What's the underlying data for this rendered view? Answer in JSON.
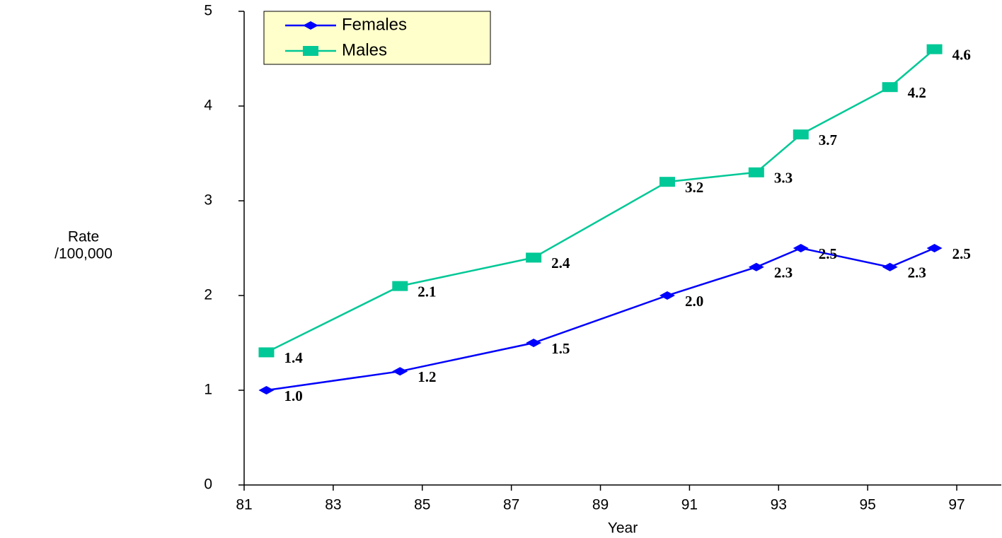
{
  "chart_data": {
    "type": "line",
    "x_label": "Year",
    "y_label": [
      "Rate",
      "/100,000"
    ],
    "x": [
      81.5,
      84.5,
      87.5,
      90.5,
      92.5,
      93.5,
      95.5,
      96.5
    ],
    "series": [
      {
        "name": "Females",
        "color": "#0000ff",
        "marker": "diamond",
        "values": [
          1.0,
          1.2,
          1.5,
          2.0,
          2.3,
          2.5,
          2.3,
          2.5
        ],
        "value_labels": [
          "1.0",
          "1.2",
          "1.5",
          "2.0",
          "2.3",
          "2.5",
          "2.3",
          "2.5"
        ]
      },
      {
        "name": "Males",
        "color": "#00c896",
        "marker": "square",
        "values": [
          1.4,
          2.1,
          2.4,
          3.2,
          3.3,
          3.7,
          4.2,
          4.6
        ],
        "value_labels": [
          "1.4",
          "2.1",
          "2.4",
          "3.2",
          "3.3",
          "3.7",
          "4.2",
          "4.6"
        ]
      }
    ],
    "xlim": [
      81,
      98
    ],
    "xticks": [
      81,
      83,
      85,
      87,
      89,
      91,
      93,
      95,
      97
    ],
    "ylim": [
      0,
      5
    ],
    "yticks": [
      0,
      1,
      2,
      3,
      4,
      5
    ],
    "grid": false,
    "legend": "upper left"
  }
}
